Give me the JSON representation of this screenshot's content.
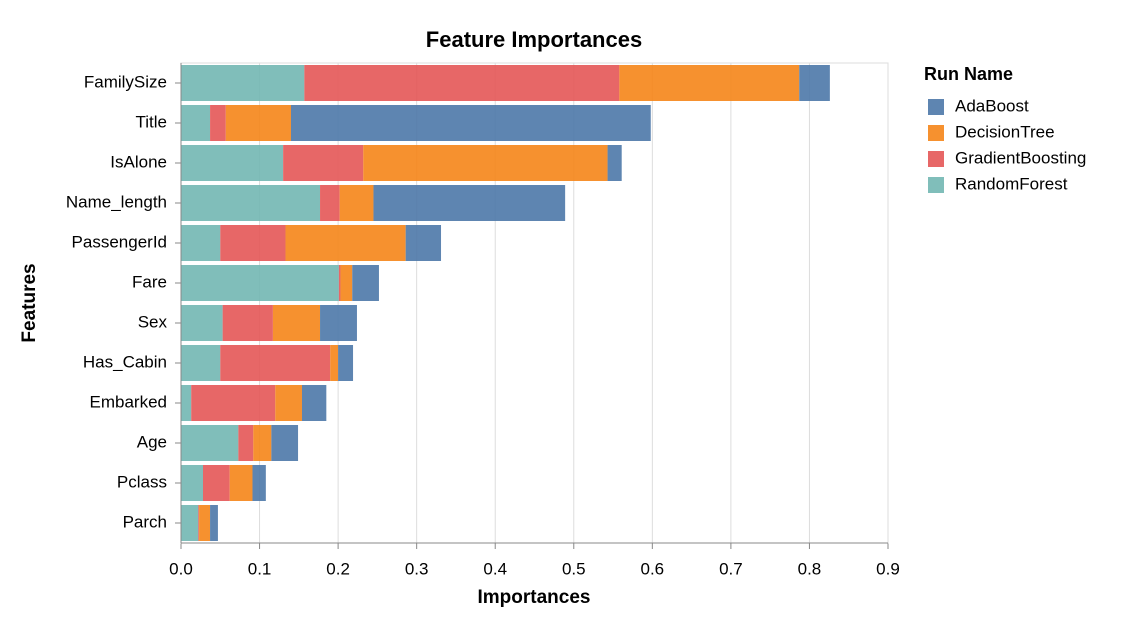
{
  "chart_data": {
    "type": "stacked-barh",
    "title": "Feature Importances",
    "x_label": "Importances",
    "y_label": "Features",
    "legend_title": "Run Name",
    "categories": [
      "FamilySize",
      "Title",
      "IsAlone",
      "Name_length",
      "PassengerId",
      "Fare",
      "Sex",
      "Has_Cabin",
      "Embarked",
      "Age",
      "Pclass",
      "Parch"
    ],
    "series": [
      {
        "name": "AdaBoost",
        "color": "#4c78a8",
        "values": [
          0.039,
          0.458,
          0.018,
          0.244,
          0.045,
          0.034,
          0.047,
          0.019,
          0.031,
          0.034,
          0.017,
          0.01
        ]
      },
      {
        "name": "DecisionTree",
        "color": "#f58518",
        "values": [
          0.229,
          0.083,
          0.311,
          0.043,
          0.153,
          0.015,
          0.06,
          0.01,
          0.034,
          0.023,
          0.029,
          0.014
        ]
      },
      {
        "name": "GradientBoosting",
        "color": "#e45756",
        "values": [
          0.401,
          0.02,
          0.102,
          0.025,
          0.083,
          0.002,
          0.064,
          0.14,
          0.107,
          0.019,
          0.034,
          0.001
        ]
      },
      {
        "name": "RandomForest",
        "color": "#72b7b2",
        "values": [
          0.157,
          0.037,
          0.13,
          0.177,
          0.05,
          0.201,
          0.053,
          0.05,
          0.013,
          0.073,
          0.028,
          0.022
        ]
      }
    ],
    "xlim": [
      0,
      0.9
    ],
    "xticks": [
      {
        "value": 0,
        "label": "0.0"
      },
      0.1,
      0.2,
      0.3,
      0.4,
      0.5,
      0.6,
      0.7,
      0.8,
      0.9
    ],
    "grid": true,
    "legend": "right"
  }
}
